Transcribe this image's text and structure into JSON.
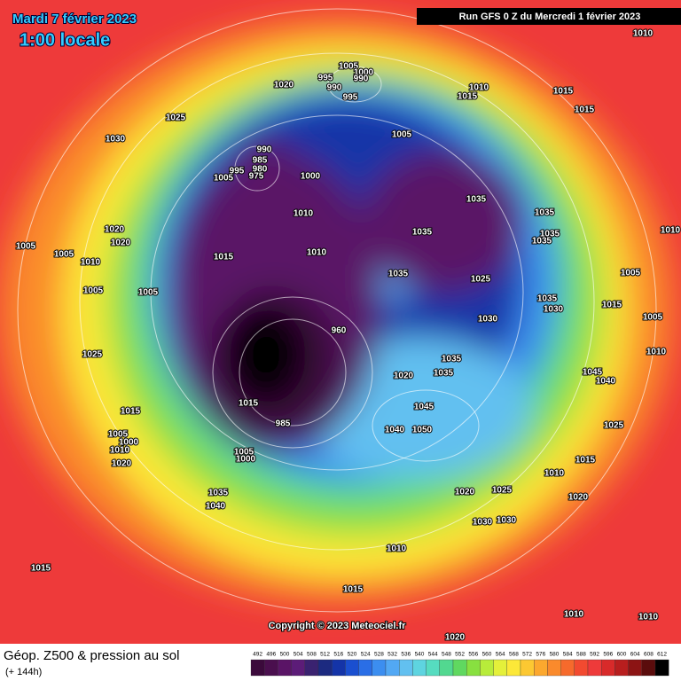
{
  "header": {
    "date": "Mardi 7 février 2023",
    "time": "1:00 locale",
    "run": "Run GFS 0 Z du Mercredi 1 février 2023"
  },
  "copyright": "Copyright © 2023 Meteociel.fr",
  "footer": {
    "title": "Géop. Z500 & pression au sol",
    "subtitle": "(+ 144h)"
  },
  "color_scale": {
    "values": [
      492,
      496,
      500,
      504,
      508,
      512,
      516,
      520,
      524,
      528,
      532,
      536,
      540,
      544,
      548,
      552,
      556,
      560,
      564,
      568,
      572,
      576,
      580,
      584,
      588,
      592,
      596,
      600,
      604,
      608,
      612
    ],
    "colors": [
      "#3b0a3b",
      "#4a0f4e",
      "#5a1466",
      "#5c1c78",
      "#3a2270",
      "#1c2a80",
      "#1434a8",
      "#1a4fd0",
      "#2a6ee6",
      "#3c8ef0",
      "#52a8f4",
      "#62c0f0",
      "#5ed4e0",
      "#56dcc0",
      "#52d890",
      "#60d860",
      "#88e040",
      "#b8ec3a",
      "#e4f03a",
      "#fce838",
      "#fcc832",
      "#fca82e",
      "#fa8a2c",
      "#f66a2c",
      "#f24a30",
      "#ee3a3a",
      "#d82a2a",
      "#b81e1e",
      "#8c1414",
      "#5a0c0c",
      "#000000"
    ]
  },
  "isobar_labels": [
    "1010",
    "1005",
    "1000",
    "995",
    "990",
    "990",
    "995",
    "1010",
    "1015",
    "1015",
    "1015",
    "1020",
    "1025",
    "1030",
    "1005",
    "990",
    "985",
    "995",
    "980",
    "975",
    "1005",
    "1000",
    "1035",
    "1010",
    "1035",
    "1035",
    "1035",
    "1035",
    "1020",
    "1020",
    "1005",
    "1005",
    "1010",
    "1010",
    "1015",
    "1010",
    "1005",
    "1035",
    "1025",
    "1005",
    "1005",
    "1035",
    "1030",
    "1030",
    "1015",
    "1005",
    "960",
    "1025",
    "1010",
    "1035",
    "1035",
    "1020",
    "1045",
    "1040",
    "1015",
    "1045",
    "1040",
    "1050",
    "1025",
    "1005",
    "1000",
    "1010",
    "1020",
    "1005",
    "1000",
    "1015",
    "1010",
    "1035",
    "1040",
    "1020",
    "1025",
    "1020",
    "1030",
    "1030",
    "1010",
    "1015",
    "1015",
    "1010",
    "1010",
    "1020",
    "985",
    "1015"
  ]
}
